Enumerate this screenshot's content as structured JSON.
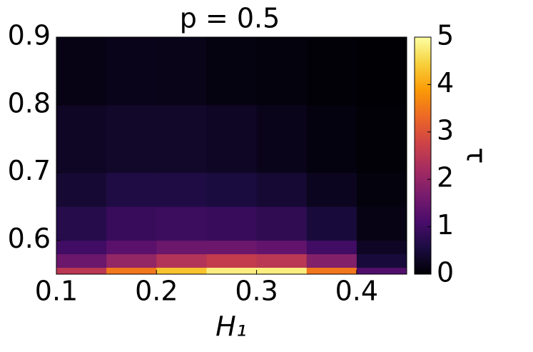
{
  "chart_data": {
    "type": "heatmap",
    "title": "p = 0.5",
    "xlabel": "H₁",
    "colorbar_label": "τ",
    "colormap": "inferno",
    "x_edges": [
      0.1,
      0.15,
      0.2,
      0.25,
      0.3,
      0.35,
      0.4,
      0.45
    ],
    "y_edges": [
      0.55,
      0.56,
      0.58,
      0.6,
      0.65,
      0.7,
      0.8,
      0.9
    ],
    "z": [
      [
        2.5,
        3.5,
        4.3,
        4.8,
        4.8,
        3.5,
        1.2
      ],
      [
        1.5,
        2.0,
        2.4,
        2.6,
        2.5,
        1.8,
        0.5
      ],
      [
        1.0,
        1.3,
        1.5,
        1.5,
        1.4,
        1.0,
        0.3
      ],
      [
        0.7,
        0.9,
        0.95,
        0.9,
        0.8,
        0.5,
        0.15
      ],
      [
        0.45,
        0.6,
        0.6,
        0.55,
        0.45,
        0.25,
        0.08
      ],
      [
        0.3,
        0.35,
        0.35,
        0.3,
        0.2,
        0.1,
        0.03
      ],
      [
        0.15,
        0.2,
        0.18,
        0.12,
        0.08,
        0.04,
        0.01
      ]
    ],
    "xlim": [
      0.1,
      0.45
    ],
    "ylim": [
      0.55,
      0.9
    ],
    "xticks": [
      0.1,
      0.2,
      0.3,
      0.4
    ],
    "yticks": [
      0.6,
      0.7,
      0.8,
      0.9
    ],
    "clim": [
      0,
      5
    ],
    "cticks": [
      0,
      1,
      2,
      3,
      4,
      5
    ]
  }
}
